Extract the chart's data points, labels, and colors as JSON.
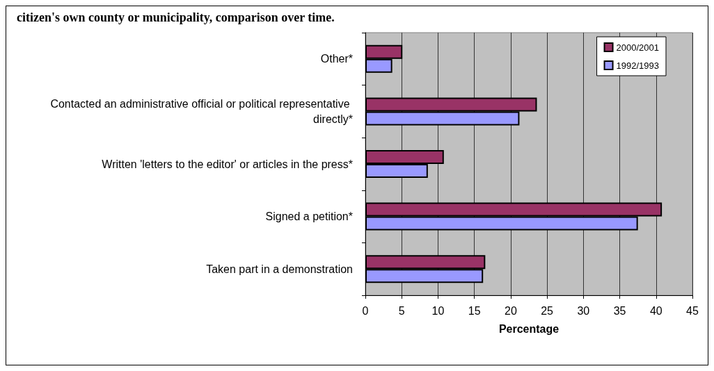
{
  "chart_data": {
    "type": "bar",
    "orientation": "horizontal",
    "title": "citizen's own county or municipality, comparison over time.",
    "xlabel": "Percentage",
    "categories": [
      "Other*",
      "Contacted an administrative official or political representative directly*",
      "Written 'letters to the editor' or articles in the press*",
      "Signed a petition*",
      "Taken part in a demonstration"
    ],
    "series": [
      {
        "name": "2000/2001",
        "color": "#993366",
        "values": [
          5.1,
          23.6,
          10.8,
          40.8,
          16.5
        ]
      },
      {
        "name": "1992/1993",
        "color": "#9999ff",
        "values": [
          3.7,
          21.2,
          8.6,
          37.5,
          16.2
        ]
      }
    ],
    "xlim": [
      0,
      45
    ],
    "xticks": [
      0,
      5,
      10,
      15,
      20,
      25,
      30,
      35,
      40,
      45
    ],
    "grid": "x",
    "legend": "top right"
  }
}
